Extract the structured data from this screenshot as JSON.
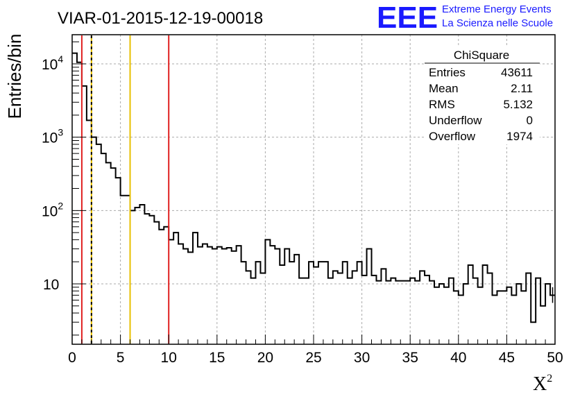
{
  "chart_data": {
    "type": "histogram",
    "title": "VIAR-01-2015-12-19-00018",
    "xlabel": "X",
    "xlabel_sup": "2",
    "ylabel": "Entries/bin",
    "xlim": [
      0,
      50
    ],
    "ylim": [
      1.5,
      25000
    ],
    "yscale": "log",
    "grid": true,
    "x_ticks": [
      "0",
      "5",
      "10",
      "15",
      "20",
      "25",
      "30",
      "35",
      "40",
      "45",
      "50"
    ],
    "y_ticks": [
      {
        "base": "10",
        "exp": "4",
        "value": 10000
      },
      {
        "base": "10",
        "exp": "3",
        "value": 1000
      },
      {
        "base": "10",
        "exp": "2",
        "value": 100
      },
      {
        "base": "10",
        "exp": "",
        "value": 10
      }
    ],
    "bin_width": 0.5,
    "bin_values": [
      14000,
      10500,
      5000,
      1700,
      1000,
      800,
      600,
      450,
      380,
      280,
      160,
      160,
      100,
      110,
      120,
      90,
      85,
      70,
      55,
      60,
      40,
      50,
      35,
      30,
      27,
      50,
      32,
      35,
      32,
      30,
      32,
      30,
      31,
      28,
      33,
      20,
      15,
      12,
      20,
      14,
      40,
      33,
      30,
      18,
      30,
      20,
      25,
      12,
      12,
      20,
      17,
      20,
      20,
      12,
      15,
      14,
      20,
      12,
      15,
      20,
      13,
      30,
      13,
      11,
      16,
      11,
      12,
      11,
      11,
      11,
      12,
      11,
      15,
      13,
      11,
      9,
      10,
      9,
      12,
      8,
      7,
      10,
      18,
      12,
      9,
      18,
      14,
      7,
      8,
      8,
      9,
      7,
      10,
      8,
      14,
      3,
      12,
      5,
      10,
      7
    ],
    "vertical_lines": [
      {
        "x": 1,
        "color": "#e02020",
        "style": "solid"
      },
      {
        "x": 2,
        "color": "#e8c000",
        "style": "solid"
      },
      {
        "x": 2,
        "color": "#000000",
        "style": "dashed"
      },
      {
        "x": 6,
        "color": "#e8c000",
        "style": "solid"
      },
      {
        "x": 10,
        "color": "#e02020",
        "style": "solid"
      }
    ],
    "stats_box": {
      "name": "ChiSquare",
      "rows": [
        {
          "label": "Entries",
          "value": "43611"
        },
        {
          "label": "Mean",
          "value": "2.11"
        },
        {
          "label": "RMS",
          "value": "5.132"
        },
        {
          "label": "Underflow",
          "value": "0"
        },
        {
          "label": "Overflow",
          "value": "1974"
        }
      ]
    }
  },
  "branding": {
    "logo_text": "EEE",
    "line1": "Extreme Energy Events",
    "line2": "La Scienza nelle Scuole",
    "color": "#1a1aff"
  }
}
